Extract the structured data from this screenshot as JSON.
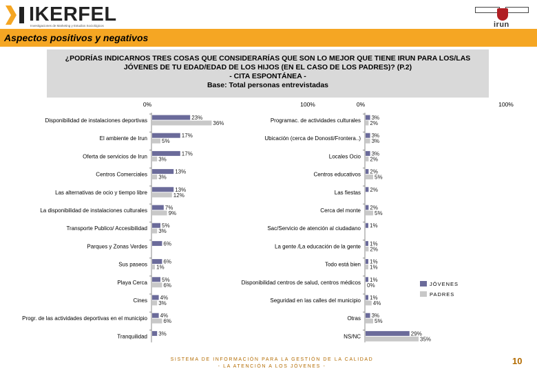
{
  "header": {
    "logo_text": "IKERFEL",
    "logo_tagline": "Investigaciones de Marketing y Estudios Sociológicos",
    "right_logo_text": "irun",
    "accent_color": "#f5a623"
  },
  "banner": {
    "title": "Aspectos positivos y negativos"
  },
  "question": {
    "line1": "¿PODRÍAS INDICARNOS TRES COSAS QUE CONSIDERARÍAS QUE SON LO MEJOR QUE TIENE IRUN PARA LOS/LAS",
    "line2": "JÓVENES DE TU EDAD/EDAD DE LOS HIJOS (EN EL CASO DE LOS PADRES)? (P.2)",
    "line3": "- CITA ESPONTÁNEA -",
    "line4": "Base: Total personas entrevistadas"
  },
  "footer": {
    "line1": "SISTEMA DE INFORMACIÓN PARA LA GESTIÓN DE LA CALIDAD",
    "line2": "- LA ATENCIÓN A LOS JÓVENES -",
    "page_number": "10"
  },
  "chart_data": [
    {
      "type": "bar",
      "orientation": "horizontal",
      "axis_min_label": "0%",
      "axis_max_label": "100%",
      "xlim": [
        0,
        100
      ],
      "series": [
        {
          "name": "JÓVENES",
          "color": "#6b6b9a"
        },
        {
          "name": "PADRES",
          "color": "#c8c8c8"
        }
      ],
      "categories": [
        "Disponibilidad de instalaciones deportivas",
        "El ambiente de Irun",
        "Oferta de servicios de Irun",
        "Centros Comerciales",
        "Las alternativas de ocio y tiempo libre",
        "La disponibilidad de instalaciones culturales",
        "Transporte Publico/ Accesibilidad",
        "Parques y Zonas Verdes",
        "Sus paseos",
        "Playa Cerca",
        "Cines",
        "Progr. de las actividades deportivas en el municipio",
        "Tranquilidad"
      ],
      "values": [
        [
          23,
          36
        ],
        [
          17,
          5
        ],
        [
          17,
          3
        ],
        [
          13,
          3
        ],
        [
          13,
          12
        ],
        [
          7,
          9
        ],
        [
          5,
          3
        ],
        [
          6,
          0
        ],
        [
          6,
          1
        ],
        [
          5,
          6
        ],
        [
          4,
          3
        ],
        [
          4,
          6
        ],
        [
          3,
          0
        ]
      ],
      "value_labels": [
        [
          "23%",
          "36%"
        ],
        [
          "17%",
          "5%"
        ],
        [
          "17%",
          "3%"
        ],
        [
          "13%",
          "3%"
        ],
        [
          "13%",
          "12%"
        ],
        [
          "7%",
          "9%"
        ],
        [
          "5%",
          "3%"
        ],
        [
          "6%",
          ""
        ],
        [
          "6%",
          "1%"
        ],
        [
          "5%",
          "6%"
        ],
        [
          "4%",
          "3%"
        ],
        [
          "4%",
          "6%"
        ],
        [
          "3%",
          ""
        ]
      ]
    },
    {
      "type": "bar",
      "orientation": "horizontal",
      "axis_min_label": "0%",
      "axis_max_label": "100%",
      "xlim": [
        0,
        100
      ],
      "series": [
        {
          "name": "JÓVENES",
          "color": "#6b6b9a"
        },
        {
          "name": "PADRES",
          "color": "#c8c8c8"
        }
      ],
      "categories": [
        "Programac. de actividades culturales",
        "Ubicación (cerca de Donosti/Frontera..)",
        "Locales Ocio",
        "Centros educativos",
        "Las fiestas",
        "Cerca del monte",
        "Sac/Servicio de atención al ciudadano",
        "La gente /La educación de la gente",
        "Todo está bien",
        "Disponibilidad centros de salud, centros médicos",
        "Seguridad en las calles del municipio",
        "Otras",
        "NS/NC"
      ],
      "values": [
        [
          3,
          2
        ],
        [
          3,
          3
        ],
        [
          3,
          2
        ],
        [
          2,
          5
        ],
        [
          2,
          0
        ],
        [
          2,
          5
        ],
        [
          1,
          0
        ],
        [
          1,
          2
        ],
        [
          1,
          1
        ],
        [
          1,
          0
        ],
        [
          1,
          4
        ],
        [
          3,
          5
        ],
        [
          29,
          35
        ]
      ],
      "value_labels": [
        [
          "3%",
          "2%"
        ],
        [
          "3%",
          "3%"
        ],
        [
          "3%",
          "2%"
        ],
        [
          "2%",
          "5%"
        ],
        [
          "2%",
          ""
        ],
        [
          "2%",
          "5%"
        ],
        [
          "1%",
          ""
        ],
        [
          "1%",
          "2%"
        ],
        [
          "1%",
          "1%"
        ],
        [
          "1%",
          "0%"
        ],
        [
          "1%",
          "4%"
        ],
        [
          "3%",
          "5%"
        ],
        [
          "29%",
          "35%"
        ]
      ]
    }
  ]
}
